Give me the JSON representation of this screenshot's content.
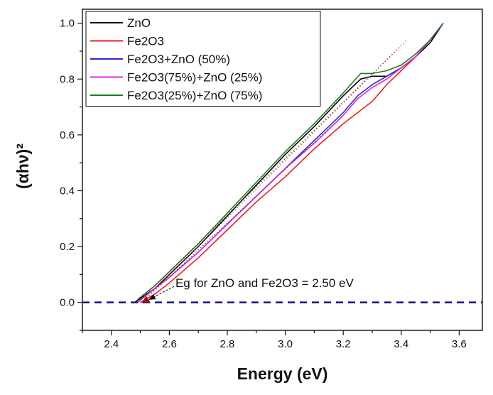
{
  "chart_data": {
    "type": "line",
    "title": "",
    "xlabel": "Energy (eV)",
    "ylabel": "(αhν)²",
    "xlim": [
      2.3,
      3.68
    ],
    "ylim": [
      -0.1,
      1.05
    ],
    "xticks": [
      "2.4",
      "2.6",
      "2.8",
      "3.0",
      "3.2",
      "3.4",
      "3.6"
    ],
    "yticks": [
      "0.0",
      "0.2",
      "0.4",
      "0.6",
      "0.8",
      "1.0"
    ],
    "grid": false,
    "legend_position": "top-left",
    "series": [
      {
        "name": "ZnO",
        "color": "#000000",
        "x": [
          2.48,
          2.55,
          2.6,
          2.7,
          2.8,
          2.9,
          3.0,
          3.1,
          3.2,
          3.26,
          3.3,
          3.35,
          3.4,
          3.45,
          3.5,
          3.545
        ],
        "y": [
          0.0,
          0.05,
          0.1,
          0.2,
          0.31,
          0.42,
          0.53,
          0.63,
          0.74,
          0.8,
          0.81,
          0.81,
          0.84,
          0.88,
          0.93,
          1.0
        ]
      },
      {
        "name": "Fe2O3",
        "color": "#e8231f",
        "x": [
          2.5,
          2.55,
          2.6,
          2.7,
          2.8,
          2.9,
          3.0,
          3.1,
          3.2,
          3.25,
          3.3,
          3.35,
          3.4,
          3.45,
          3.5,
          3.545
        ],
        "y": [
          0.0,
          0.03,
          0.07,
          0.16,
          0.26,
          0.36,
          0.45,
          0.55,
          0.64,
          0.68,
          0.72,
          0.78,
          0.83,
          0.88,
          0.94,
          1.0
        ]
      },
      {
        "name": "Fe2O3+ZnO (50%)",
        "color": "#2b2bd6",
        "x": [
          2.49,
          2.55,
          2.6,
          2.7,
          2.8,
          2.9,
          3.0,
          3.1,
          3.2,
          3.25,
          3.3,
          3.35,
          3.4,
          3.45,
          3.5,
          3.545
        ],
        "y": [
          0.0,
          0.05,
          0.09,
          0.18,
          0.28,
          0.38,
          0.48,
          0.58,
          0.68,
          0.74,
          0.78,
          0.81,
          0.84,
          0.88,
          0.94,
          1.0
        ]
      },
      {
        "name": "Fe2O3(75%)+ZnO (25%)",
        "color": "#e620e6",
        "x": [
          2.49,
          2.55,
          2.6,
          2.7,
          2.8,
          2.9,
          3.0,
          3.1,
          3.2,
          3.25,
          3.3,
          3.35,
          3.4,
          3.45,
          3.5,
          3.545
        ],
        "y": [
          0.0,
          0.05,
          0.09,
          0.18,
          0.28,
          0.38,
          0.48,
          0.57,
          0.67,
          0.73,
          0.77,
          0.8,
          0.84,
          0.88,
          0.94,
          1.0
        ]
      },
      {
        "name": "Fe2O3(25%)+ZnO (75%)",
        "color": "#1e7d1e",
        "x": [
          2.49,
          2.55,
          2.6,
          2.7,
          2.8,
          2.9,
          3.0,
          3.1,
          3.2,
          3.26,
          3.3,
          3.35,
          3.4,
          3.45,
          3.5,
          3.545
        ],
        "y": [
          0.01,
          0.06,
          0.11,
          0.21,
          0.32,
          0.43,
          0.54,
          0.64,
          0.75,
          0.82,
          0.82,
          0.83,
          0.85,
          0.89,
          0.94,
          1.0
        ]
      }
    ],
    "fit_lines": [
      {
        "color": "#444444",
        "x": [
          2.49,
          3.4
        ],
        "y": [
          0.0,
          0.92
        ]
      },
      {
        "color": "#c0302a",
        "x": [
          2.505,
          3.42
        ],
        "y": [
          0.0,
          0.94
        ]
      },
      {
        "color": "#444444",
        "x": [
          2.505,
          3.2
        ],
        "y": [
          0.0,
          0.67
        ]
      }
    ],
    "baseline": {
      "y": 0.0,
      "color": "#1c1c8c"
    },
    "annotation": {
      "text": "Eg for ZnO and Fe2O3 = 2.50 eV",
      "arrow_to": [
        2.52,
        0.0
      ],
      "text_at": [
        2.92,
        0.065
      ]
    }
  }
}
